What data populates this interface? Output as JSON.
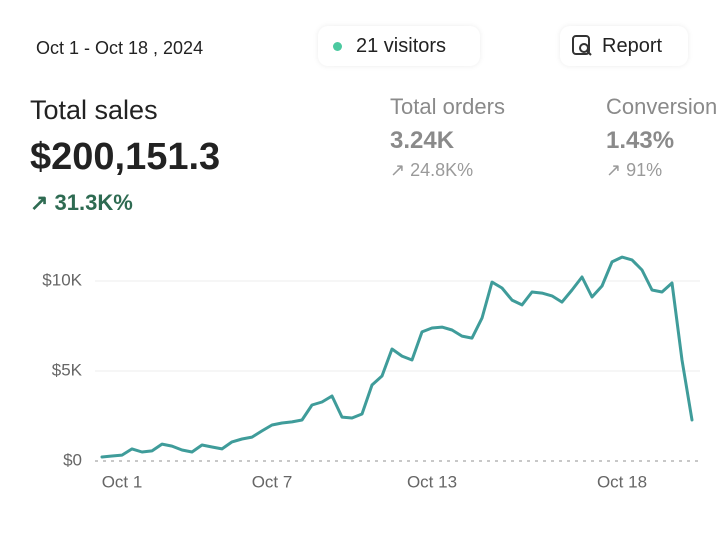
{
  "header": {
    "date_range": "Oct 1 - Oct 18 , 2024",
    "visitors": "21 visitors",
    "report": "Report"
  },
  "metrics": [
    {
      "label": "Total sales",
      "value": "$200,151.3",
      "change": "31.3K%"
    },
    {
      "label": "Total orders",
      "value": "3.24K",
      "change": "24.8K%"
    },
    {
      "label": "Conversion",
      "value": "1.43%",
      "change": "91%"
    }
  ],
  "chart_data": {
    "type": "line",
    "color": "#3f9c9a",
    "categories": [
      null,
      null,
      "Oct 1",
      null,
      null,
      null,
      null,
      null,
      null,
      null,
      null,
      null,
      null,
      null,
      null,
      null,
      null,
      "Oct 7",
      null,
      null,
      null,
      null,
      null,
      null,
      null,
      null,
      null,
      null,
      null,
      null,
      null,
      null,
      null,
      "Oct 13",
      null,
      null,
      null,
      null,
      null,
      null,
      null,
      null,
      null,
      null,
      null,
      null,
      null,
      null,
      null,
      null,
      null,
      null,
      "Oct 18",
      null,
      null,
      null,
      null,
      null,
      null,
      null
    ],
    "values": [
      220,
      280,
      330,
      670,
      500,
      560,
      940,
      830,
      610,
      500,
      890,
      780,
      670,
      1060,
      1220,
      1330,
      1670,
      2000,
      2110,
      2170,
      2280,
      3110,
      3280,
      3610,
      2440,
      2390,
      2610,
      4220,
      4720,
      6220,
      5830,
      5610,
      7170,
      7390,
      7440,
      7280,
      6940,
      6830,
      7940,
      9940,
      9610,
      8940,
      8670,
      9390,
      9330,
      9170,
      8830,
      9500,
      10220,
      9110,
      9720,
      11060,
      11330,
      11170,
      10610,
      9500,
      9390,
      9890,
      5610,
      2280
    ],
    "ylim": [
      0,
      12000
    ],
    "yticks": [
      {
        "value": 0,
        "label": "$0"
      },
      {
        "value": 5000,
        "label": "$5K"
      },
      {
        "value": 10000,
        "label": "$10K"
      }
    ],
    "grid": true
  }
}
